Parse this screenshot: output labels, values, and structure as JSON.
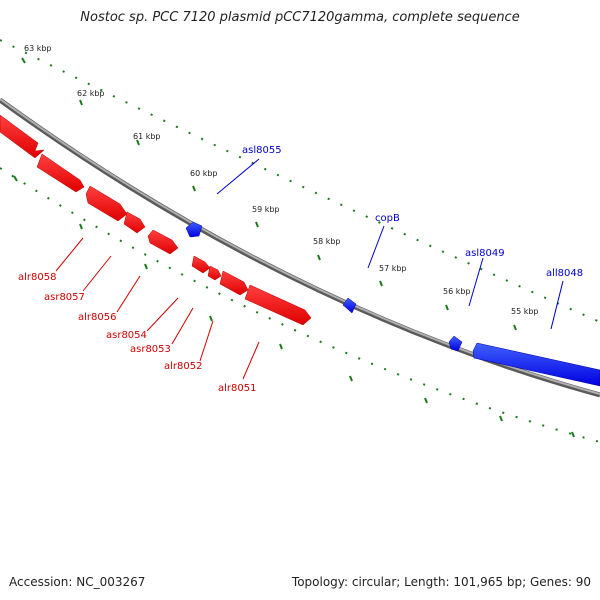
{
  "title": "Nostoc sp. PCC 7120 plasmid pCC7120gamma, complete sequence",
  "footer": {
    "accession": "Accession: NC_003267",
    "summary": "Topology: circular; Length: 101,965 bp; Genes: 90"
  },
  "colors": {
    "forward_strand": "#ff0000",
    "reverse_strand": "#0000ff",
    "backbone": "#8c8c8c",
    "ticks": "#1a7a1a",
    "text": "#222222"
  },
  "scale_labels": [
    "63 kbp",
    "62 kbp",
    "61 kbp",
    "60 kbp",
    "59 kbp",
    "58 kbp",
    "57 kbp",
    "56 kbp",
    "55 kbp"
  ],
  "genes": [
    {
      "name": "alr8058",
      "strand": "forward"
    },
    {
      "name": "asr8057",
      "strand": "forward"
    },
    {
      "name": "alr8056",
      "strand": "forward"
    },
    {
      "name": "asr8054",
      "strand": "forward"
    },
    {
      "name": "asr8053",
      "strand": "forward"
    },
    {
      "name": "alr8052",
      "strand": "forward"
    },
    {
      "name": "alr8051",
      "strand": "forward"
    },
    {
      "name": "asl8055",
      "strand": "reverse"
    },
    {
      "name": "copB",
      "strand": "reverse"
    },
    {
      "name": "asl8049",
      "strand": "reverse"
    },
    {
      "name": "all8048",
      "strand": "reverse"
    }
  ]
}
